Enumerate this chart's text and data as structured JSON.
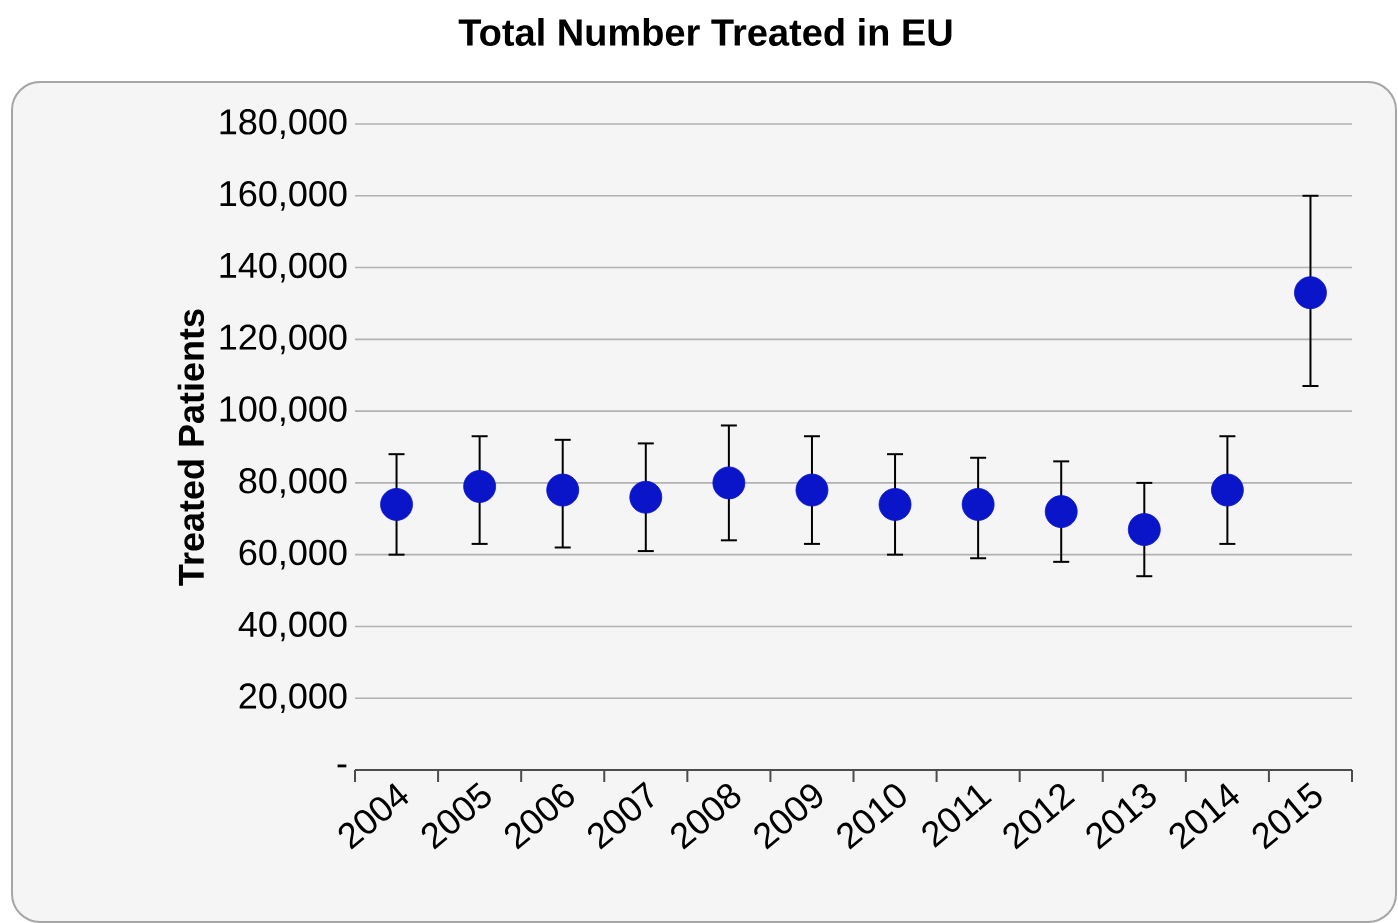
{
  "chart_data": {
    "type": "scatter",
    "title": "Total Number Treated in EU",
    "ylabel": "Treated Patients",
    "categories": [
      "2004",
      "2005",
      "2006",
      "2007",
      "2008",
      "2009",
      "2010",
      "2011",
      "2012",
      "2013",
      "2014",
      "2015"
    ],
    "values": [
      74000,
      79000,
      78000,
      76000,
      80000,
      78000,
      74000,
      74000,
      72000,
      67000,
      78000,
      133000
    ],
    "errors": [
      [
        60000,
        88000
      ],
      [
        63000,
        93000
      ],
      [
        62000,
        92000
      ],
      [
        61000,
        91000
      ],
      [
        64000,
        96000
      ],
      [
        63000,
        93000
      ],
      [
        60000,
        88000
      ],
      [
        59000,
        87000
      ],
      [
        58000,
        86000
      ],
      [
        54000,
        80000
      ],
      [
        63000,
        93000
      ],
      [
        107000,
        160000
      ]
    ],
    "color": "#0a14c8",
    "marker": "circle",
    "ylim": [
      0,
      180000
    ],
    "yticks": [
      {
        "value": 0,
        "label": "-"
      },
      {
        "value": 20000,
        "label": "20,000"
      },
      {
        "value": 40000,
        "label": "40,000"
      },
      {
        "value": 60000,
        "label": "60,000"
      },
      {
        "value": 80000,
        "label": "80,000"
      },
      {
        "value": 100000,
        "label": "100,000"
      },
      {
        "value": 120000,
        "label": "120,000"
      },
      {
        "value": 140000,
        "label": "140,000"
      },
      {
        "value": 160000,
        "label": "160,000"
      },
      {
        "value": 180000,
        "label": "180,000"
      }
    ],
    "grid": "y"
  }
}
